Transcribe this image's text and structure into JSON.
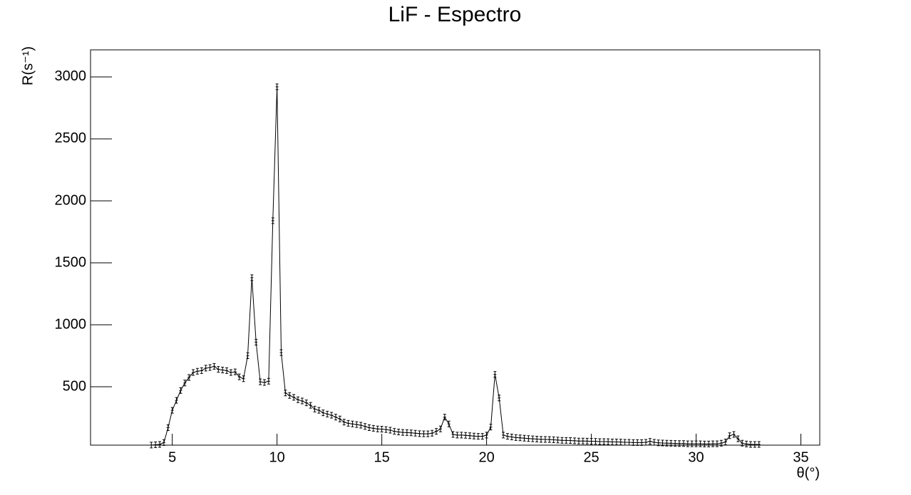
{
  "chart_data": {
    "type": "line",
    "title": "LiF - Espectro",
    "x_label": "θ(°)",
    "y_label": "R(s⁻¹)",
    "x": [
      4,
      4.2,
      4.4,
      4.6,
      4.8,
      5,
      5.2,
      5.4,
      5.6,
      5.8,
      6,
      6.2,
      6.4,
      6.6,
      6.8,
      7,
      7.2,
      7.4,
      7.6,
      7.8,
      8,
      8.2,
      8.4,
      8.6,
      8.8,
      9,
      9.2,
      9.4,
      9.6,
      9.8,
      10,
      10.2,
      10.4,
      10.6,
      10.8,
      11,
      11.2,
      11.4,
      11.6,
      11.8,
      12,
      12.2,
      12.4,
      12.6,
      12.8,
      13,
      13.2,
      13.4,
      13.6,
      13.8,
      14,
      14.2,
      14.4,
      14.6,
      14.8,
      15,
      15.2,
      15.4,
      15.6,
      15.8,
      16,
      16.2,
      16.4,
      16.6,
      16.8,
      17,
      17.2,
      17.4,
      17.6,
      17.8,
      18,
      18.2,
      18.4,
      18.6,
      18.8,
      19,
      19.2,
      19.4,
      19.6,
      19.8,
      20,
      20.2,
      20.4,
      20.6,
      20.8,
      21,
      21.2,
      21.4,
      21.6,
      21.8,
      22,
      22.2,
      22.4,
      22.6,
      22.8,
      23,
      23.2,
      23.4,
      23.6,
      23.8,
      24,
      24.2,
      24.4,
      24.6,
      24.8,
      25,
      25.2,
      25.4,
      25.6,
      25.8,
      26,
      26.2,
      26.4,
      26.6,
      26.8,
      27,
      27.2,
      27.4,
      27.6,
      27.8,
      28,
      28.2,
      28.4,
      28.6,
      28.8,
      29,
      29.2,
      29.4,
      29.6,
      29.8,
      30,
      30.2,
      30.4,
      30.6,
      30.8,
      31,
      31.2,
      31.4,
      31.6,
      31.8,
      32,
      32.2,
      32.4,
      32.6,
      32.8,
      33
    ],
    "values": [
      30,
      32,
      35,
      50,
      170,
      310,
      390,
      470,
      530,
      575,
      615,
      625,
      630,
      650,
      655,
      665,
      640,
      635,
      630,
      615,
      620,
      580,
      565,
      750,
      1380,
      860,
      540,
      535,
      545,
      1840,
      2920,
      775,
      450,
      430,
      415,
      395,
      385,
      370,
      350,
      320,
      310,
      290,
      280,
      270,
      255,
      240,
      215,
      205,
      200,
      195,
      190,
      180,
      170,
      165,
      160,
      158,
      155,
      150,
      140,
      135,
      132,
      130,
      128,
      125,
      122,
      120,
      120,
      125,
      140,
      160,
      255,
      200,
      115,
      110,
      110,
      108,
      105,
      102,
      100,
      100,
      110,
      175,
      600,
      410,
      110,
      100,
      95,
      90,
      88,
      85,
      82,
      80,
      78,
      76,
      75,
      74,
      72,
      70,
      68,
      67,
      66,
      64,
      62,
      62,
      61,
      60,
      60,
      58,
      58,
      57,
      55,
      55,
      54,
      52,
      52,
      50,
      50,
      50,
      52,
      60,
      52,
      48,
      46,
      45,
      44,
      43,
      42,
      42,
      40,
      40,
      40,
      40,
      38,
      38,
      40,
      40,
      45,
      55,
      105,
      115,
      80,
      45,
      38,
      35,
      35,
      35
    ],
    "color": "#000000",
    "xlim": [
      1.1,
      35.9
    ],
    "xticks": [
      5,
      10,
      15,
      20,
      25,
      30,
      35
    ],
    "ylim": [
      29,
      3218
    ],
    "yticks": [
      500,
      1000,
      1500,
      2000,
      2500,
      3000
    ]
  }
}
